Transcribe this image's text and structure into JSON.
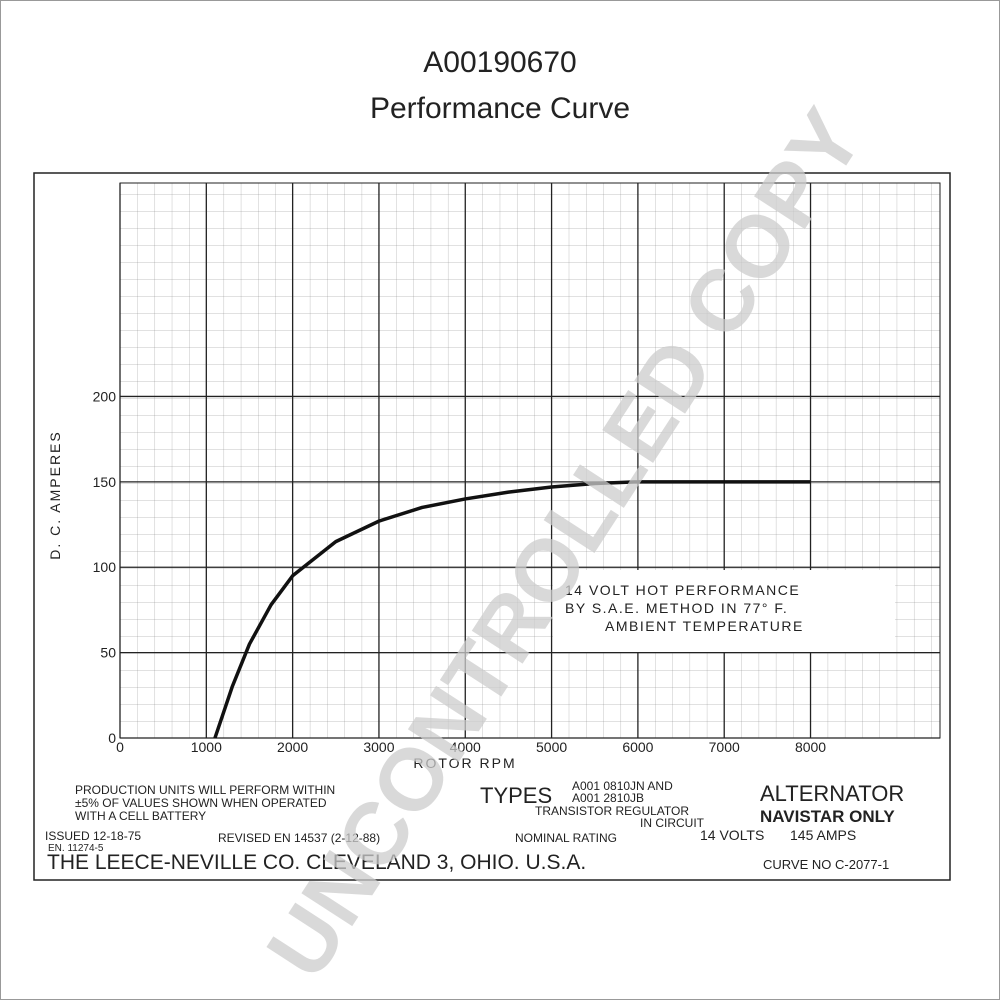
{
  "chart_data": {
    "type": "line",
    "title": "A00190670",
    "subtitle": "Performance Curve",
    "x_label": "ROTOR RPM",
    "y_label": "D. C. AMPERES",
    "x": [
      1100,
      1300,
      1500,
      1750,
      2000,
      2500,
      3000,
      3500,
      4000,
      4500,
      5000,
      5500,
      6000,
      7000,
      8000
    ],
    "series": [
      {
        "color": "#111111",
        "values": [
          0,
          30,
          55,
          78,
          95,
          115,
          127,
          135,
          140,
          144,
          147,
          149,
          150,
          150,
          150
        ]
      }
    ],
    "xlim": [
      0,
      9500
    ],
    "ylim": [
      0,
      325
    ],
    "xticks": [
      0,
      1000,
      2000,
      3000,
      4000,
      5000,
      6000,
      7000,
      8000
    ],
    "yticks": [
      0,
      50,
      100,
      150,
      200
    ],
    "grid": true,
    "box_text": [
      "14 VOLT HOT PERFORMANCE",
      "BY S.A.E. METHOD IN 77° F.",
      "AMBIENT TEMPERATURE"
    ],
    "notes": [
      "PRODUCTION UNITS WILL PERFORM WITHIN",
      "±5% OF VALUES SHOWN WHEN OPERATED",
      "WITH A CELL BATTERY",
      "ISSUED 12-18-75",
      "EN. 11274-5",
      "REVISED EN 14537 (2-12-88)",
      "TYPES",
      "A001 0810JN AND",
      "A001 2810JB",
      "TRANSISTOR REGULATOR",
      "IN CIRCUIT",
      "ALTERNATOR",
      "NAVISTAR ONLY",
      "NOMINAL RATING",
      "14 VOLTS",
      "145 AMPS",
      "THE LEECE-NEVILLE CO. CLEVELAND 3, OHIO. U.S.A.",
      "CURVE NO C-2077-1"
    ],
    "watermark": "UNCONTROLLED COPY"
  }
}
